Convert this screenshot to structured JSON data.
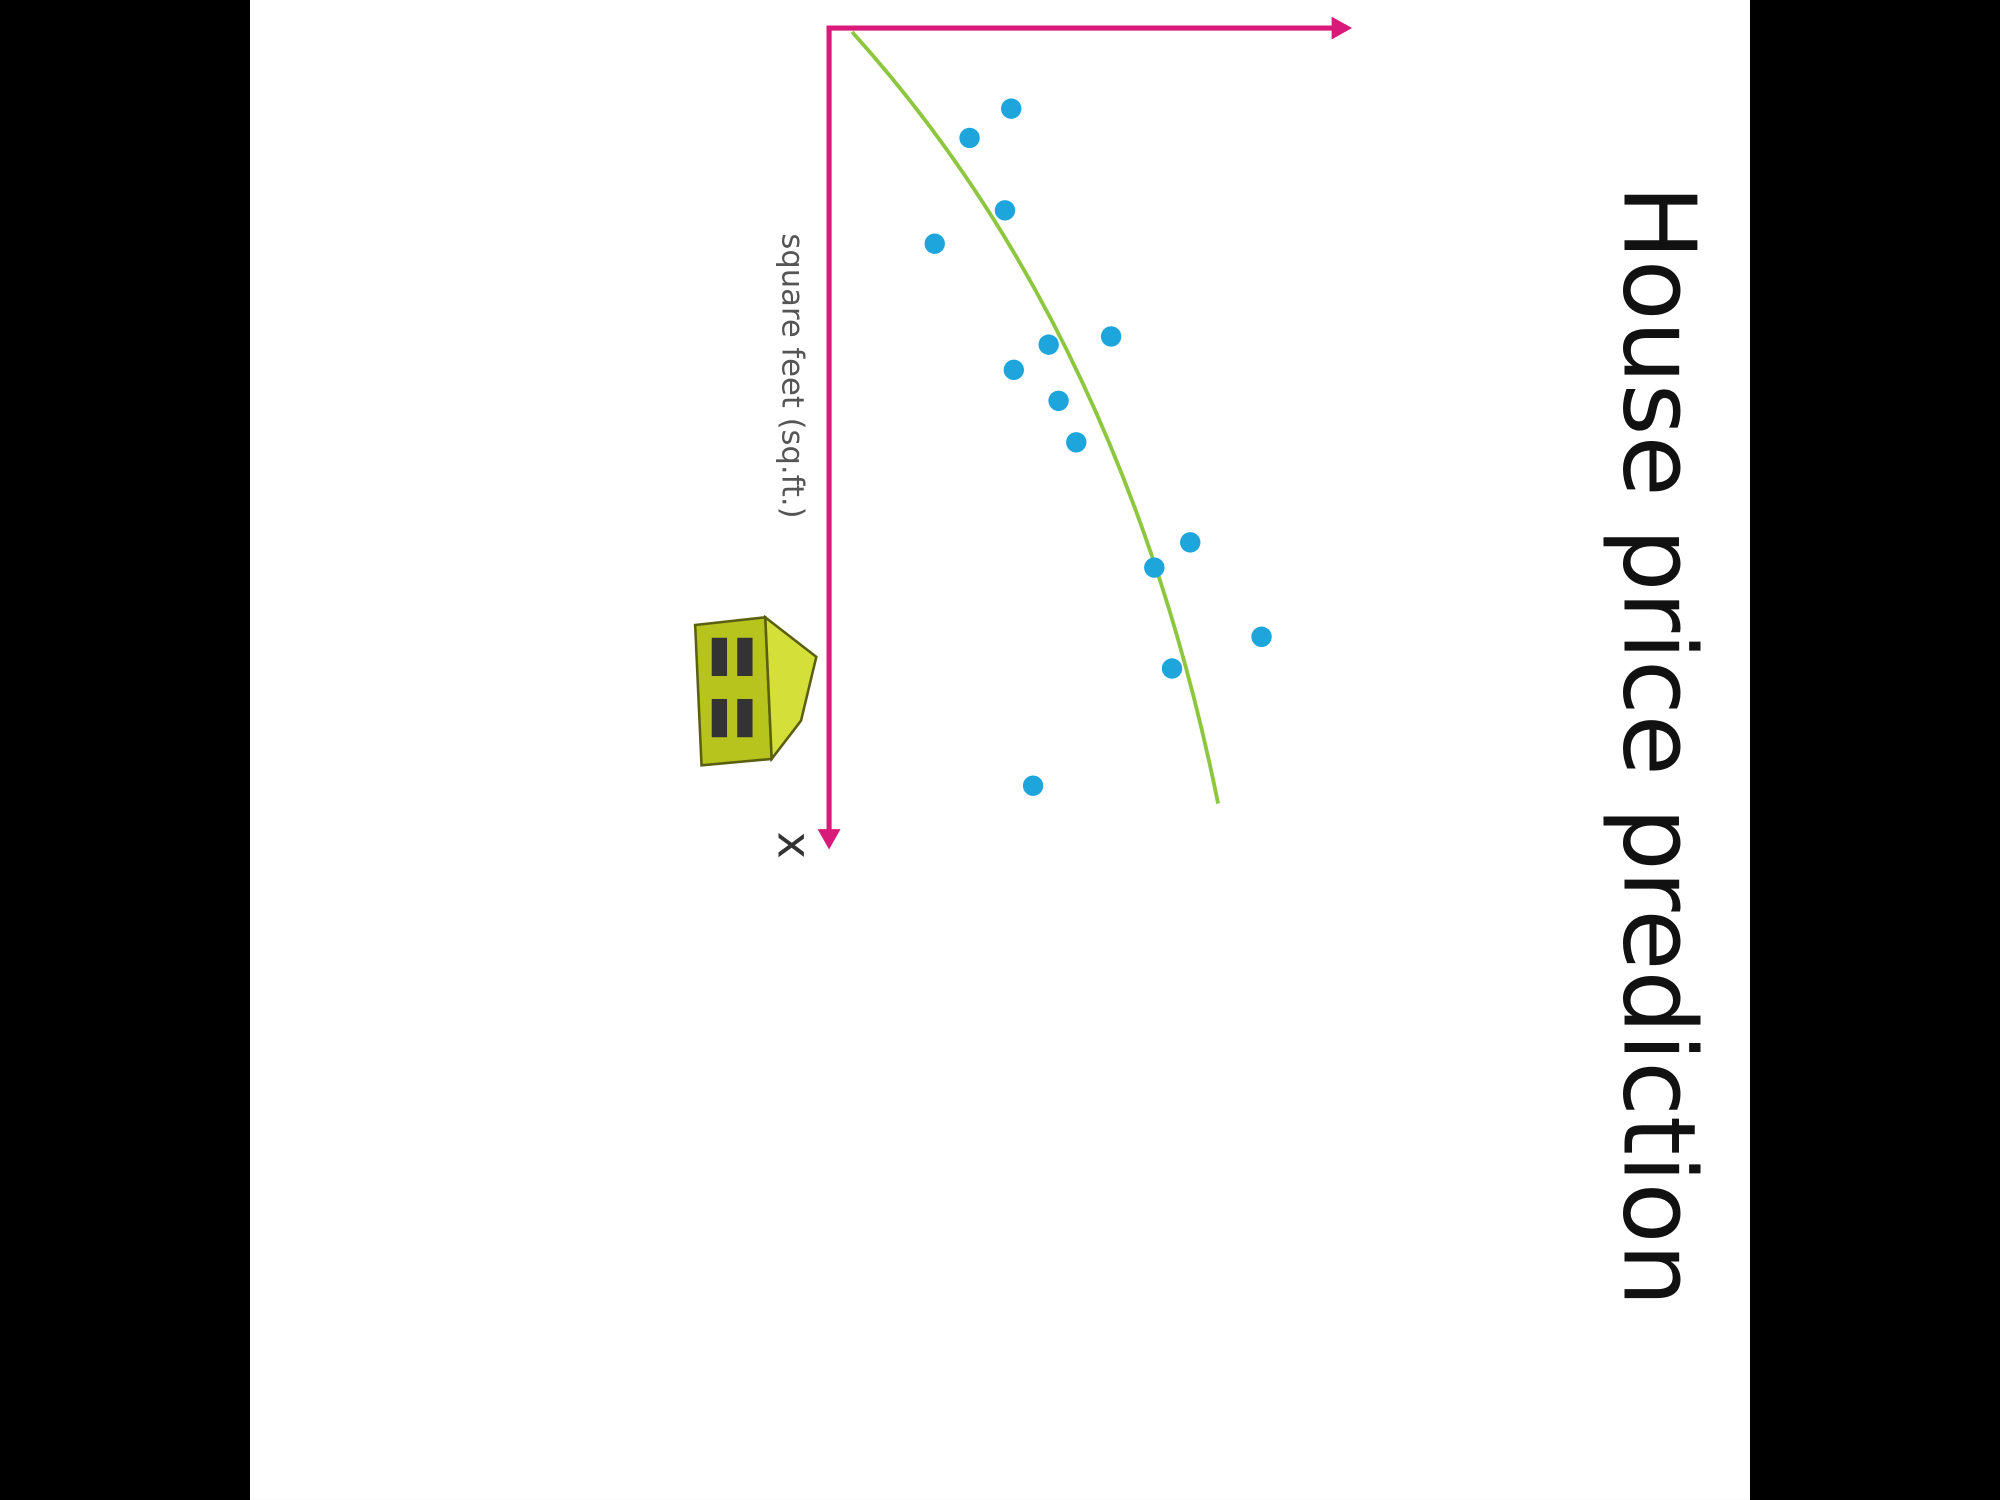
{
  "chart_data": {
    "type": "scatter",
    "title": "House price prediction",
    "x_label": "square feet (sq.ft.)",
    "x_axis_letter": "x",
    "color": "#1ea6dc",
    "xlim": [
      0,
      100
    ],
    "ylim": [
      0,
      100
    ],
    "grid": false,
    "x": [
      9.9,
      13.5,
      22.4,
      26.5,
      38.9,
      37.9,
      42.0,
      45.8,
      50.9,
      63.2,
      66.3,
      74.8,
      78.7,
      93.1
    ],
    "values": [
      35.0,
      27.0,
      33.8,
      20.3,
      42.2,
      54.2,
      35.5,
      44.1,
      47.5,
      69.4,
      62.5,
      83.1,
      65.9,
      39.2
    ]
  }
}
